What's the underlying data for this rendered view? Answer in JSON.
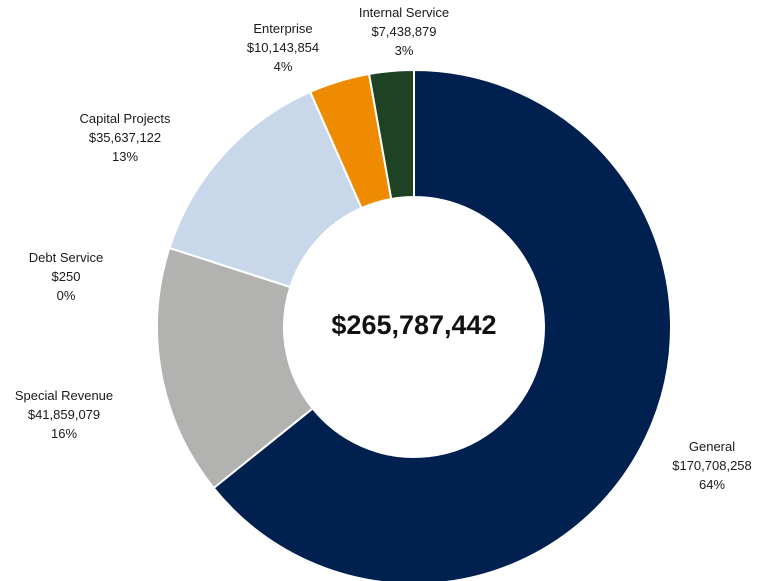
{
  "chart_data": {
    "type": "pie",
    "variant": "donut",
    "center_label": "$265,787,442",
    "slices": [
      {
        "name": "General",
        "amount": "$170,708,258",
        "percent": "64%",
        "value": 170708258,
        "color": "#002050"
      },
      {
        "name": "Special Revenue",
        "amount": "$41,859,079",
        "percent": "16%",
        "value": 41859079,
        "color": "#b2b3b1"
      },
      {
        "name": "Debt Service",
        "amount": "$250",
        "percent": "0%",
        "value": 250,
        "color": "#a5a5a5"
      },
      {
        "name": "Capital Projects",
        "amount": "$35,637,122",
        "percent": "13%",
        "value": 35637122,
        "color": "#c8d8ea"
      },
      {
        "name": "Enterprise",
        "amount": "$10,143,854",
        "percent": "4%",
        "value": 10143854,
        "color": "#ee8b00"
      },
      {
        "name": "Internal Service",
        "amount": "$7,438,879",
        "percent": "3%",
        "value": 7438879,
        "color": "#1f4124"
      }
    ],
    "legend": "none",
    "start_angle": "12 o'clock, clockwise"
  }
}
